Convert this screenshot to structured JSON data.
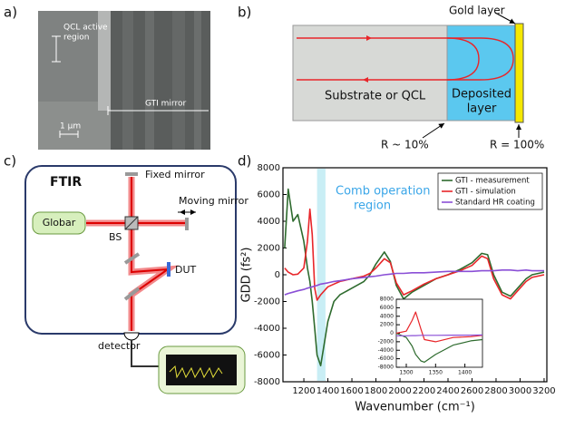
{
  "panels": {
    "a": {
      "label": "a)",
      "active_region": [
        "QCL active",
        "region"
      ],
      "mirror": "GTI mirror",
      "scale": "1 µm"
    },
    "b": {
      "label": "b)",
      "gold": "Gold layer",
      "substrate": "Substrate or QCL",
      "deposited": [
        "Deposited",
        "layer"
      ],
      "r_left": "R ~ 10%",
      "r_right": "R = 100%"
    },
    "c": {
      "label": "c)",
      "ftir": "FTIR",
      "fixed": "Fixed mirror",
      "moving": "Moving mirror",
      "globar": "Globar",
      "bs": "BS",
      "dut": "DUT",
      "detector": "detector"
    },
    "d": {
      "label": "d)"
    }
  },
  "chart_data": [
    {
      "type": "line",
      "ylabel": "GDD (fs²)",
      "xlabel": "Wavenumber (cm⁻¹)",
      "annotation": [
        "Comb operation",
        "region"
      ],
      "band": [
        1310,
        1380
      ],
      "band_color": "#c9eef5",
      "legend": "upper right",
      "xlim": [
        1026,
        3223
      ],
      "ylim": [
        -8000,
        8000
      ],
      "xticks": [
        1200,
        1400,
        1600,
        1800,
        2000,
        2200,
        2400,
        2600,
        2800,
        3000,
        3200
      ],
      "yticks": [
        -8000,
        -6000,
        -4000,
        -2000,
        0,
        2000,
        4000,
        6000,
        8000
      ],
      "x": [
        1040,
        1070,
        1110,
        1150,
        1200,
        1230,
        1250,
        1270,
        1290,
        1310,
        1340,
        1400,
        1450,
        1500,
        1600,
        1700,
        1750,
        1800,
        1870,
        1920,
        1970,
        2030,
        2100,
        2200,
        2300,
        2400,
        2500,
        2600,
        2680,
        2730,
        2780,
        2850,
        2920,
        2980,
        3050,
        3100,
        3200
      ],
      "series": [
        {
          "name": "GTI - measurement",
          "color": "#2e6b2e",
          "values": [
            2000,
            6400,
            4000,
            4500,
            2500,
            500,
            -500,
            -2000,
            -4000,
            -6000,
            -6800,
            -3500,
            -2000,
            -1500,
            -1000,
            -500,
            0,
            800,
            1700,
            1000,
            -800,
            -1800,
            -1300,
            -800,
            -300,
            0,
            400,
            900,
            1600,
            1500,
            0,
            -1300,
            -1600,
            -1000,
            -300,
            0,
            200
          ]
        },
        {
          "name": "GTI - simulation",
          "color": "#e8262a",
          "values": [
            500,
            200,
            0,
            50,
            500,
            2500,
            4900,
            3000,
            -1000,
            -1900,
            -1500,
            -900,
            -700,
            -500,
            -300,
            -100,
            100,
            500,
            1200,
            900,
            -600,
            -1500,
            -1200,
            -700,
            -300,
            0,
            300,
            700,
            1400,
            1200,
            -300,
            -1500,
            -1800,
            -1200,
            -500,
            -200,
            0
          ]
        },
        {
          "name": "Standard HR coating",
          "color": "#8a4fd6",
          "values": [
            -1500,
            -1400,
            -1300,
            -1200,
            -1100,
            -1000,
            -950,
            -900,
            -850,
            -800,
            -700,
            -600,
            -500,
            -450,
            -300,
            -200,
            -150,
            -100,
            0,
            50,
            100,
            100,
            150,
            150,
            200,
            250,
            250,
            250,
            300,
            300,
            300,
            350,
            350,
            300,
            350,
            300,
            300
          ]
        }
      ]
    },
    {
      "type": "line",
      "xlim": [
        1283,
        1430
      ],
      "ylim": [
        -8000,
        8000
      ],
      "xticks": [
        1300,
        1350,
        1400
      ],
      "yticks": [
        -8000,
        -6000,
        -4000,
        -2000,
        0,
        2000,
        4000,
        6000,
        8000
      ],
      "x": [
        1283,
        1300,
        1310,
        1316,
        1325,
        1331,
        1350,
        1380,
        1410,
        1430
      ],
      "series": [
        {
          "color": "#2e6b2e",
          "values": [
            0,
            -1000,
            -3000,
            -5000,
            -6500,
            -6800,
            -5000,
            -2800,
            -1800,
            -1500
          ]
        },
        {
          "color": "#e8262a",
          "values": [
            0,
            500,
            3000,
            5000,
            1000,
            -1500,
            -2000,
            -1000,
            -800,
            -500
          ]
        },
        {
          "color": "#8a4fd6",
          "values": [
            -600,
            -600,
            -550,
            -550,
            -500,
            -500,
            -500,
            -450,
            -450,
            -400
          ]
        }
      ]
    }
  ]
}
